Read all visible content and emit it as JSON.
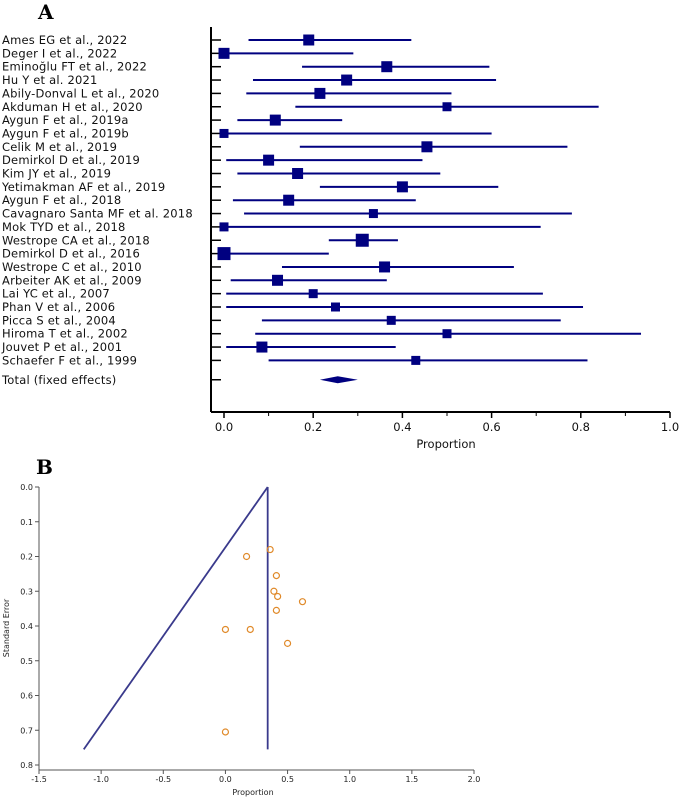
{
  "chart_data": [
    {
      "panel": "A",
      "type": "forest",
      "xlabel": "Proportion",
      "xlim": [
        0,
        1
      ],
      "xticks": [
        "0.0",
        "0.2",
        "0.4",
        "0.6",
        "0.8",
        "1.0"
      ],
      "xtick_values": [
        0,
        0.2,
        0.4,
        0.6,
        0.8,
        1.0
      ],
      "color": "#000080",
      "studies": [
        {
          "label": "Ames EG et al., 2022",
          "est": 0.19,
          "lo": 0.055,
          "hi": 0.42,
          "w": 3
        },
        {
          "label": "Deger I et al., 2022",
          "est": 0.0,
          "lo": 0.0,
          "hi": 0.29,
          "w": 3
        },
        {
          "label": "Eminoğlu FT et al., 2022",
          "est": 0.365,
          "lo": 0.175,
          "hi": 0.595,
          "w": 3
        },
        {
          "label": "Hu Y et al. 2021",
          "est": 0.275,
          "lo": 0.065,
          "hi": 0.61,
          "w": 3
        },
        {
          "label": "Abily-Donval L et al., 2020",
          "est": 0.215,
          "lo": 0.05,
          "hi": 0.51,
          "w": 3
        },
        {
          "label": "Akduman H et al., 2020",
          "est": 0.5,
          "lo": 0.16,
          "hi": 0.84,
          "w": 2
        },
        {
          "label": "Aygun F et al., 2019a",
          "est": 0.115,
          "lo": 0.03,
          "hi": 0.265,
          "w": 3
        },
        {
          "label": "Aygun F et al., 2019b",
          "est": 0.0,
          "lo": 0.0,
          "hi": 0.6,
          "w": 2
        },
        {
          "label": "Celik M et al., 2019",
          "est": 0.455,
          "lo": 0.17,
          "hi": 0.77,
          "w": 3
        },
        {
          "label": "Demirkol D et al., 2019",
          "est": 0.1,
          "lo": 0.005,
          "hi": 0.445,
          "w": 3
        },
        {
          "label": "Kim JY et al., 2019",
          "est": 0.165,
          "lo": 0.03,
          "hi": 0.485,
          "w": 3
        },
        {
          "label": "Yetimakman AF et al., 2019",
          "est": 0.4,
          "lo": 0.215,
          "hi": 0.615,
          "w": 3
        },
        {
          "label": "Aygun F et al., 2018",
          "est": 0.145,
          "lo": 0.02,
          "hi": 0.43,
          "w": 3
        },
        {
          "label": "Cavagnaro Santa MF et al. 2018",
          "est": 0.335,
          "lo": 0.045,
          "hi": 0.78,
          "w": 2
        },
        {
          "label": "Mok TYD et al., 2018",
          "est": 0.0,
          "lo": 0.0,
          "hi": 0.71,
          "w": 2
        },
        {
          "label": "Westrope CA et al., 2018",
          "est": 0.31,
          "lo": 0.235,
          "hi": 0.39,
          "w": 4
        },
        {
          "label": "Demirkol D et al., 2016",
          "est": 0.0,
          "lo": 0.0,
          "hi": 0.235,
          "w": 4
        },
        {
          "label": "Westrope C et al., 2010",
          "est": 0.36,
          "lo": 0.13,
          "hi": 0.65,
          "w": 3
        },
        {
          "label": "Arbeiter AK et al., 2009",
          "est": 0.12,
          "lo": 0.015,
          "hi": 0.365,
          "w": 3
        },
        {
          "label": "Lai YC et al., 2007",
          "est": 0.2,
          "lo": 0.005,
          "hi": 0.715,
          "w": 2
        },
        {
          "label": "Phan V et al., 2006",
          "est": 0.25,
          "lo": 0.005,
          "hi": 0.805,
          "w": 2
        },
        {
          "label": "Picca S et al., 2004",
          "est": 0.375,
          "lo": 0.085,
          "hi": 0.755,
          "w": 2
        },
        {
          "label": "Hiroma T et al., 2002",
          "est": 0.5,
          "lo": 0.07,
          "hi": 0.935,
          "w": 2
        },
        {
          "label": "Jouvet P et al., 2001",
          "est": 0.085,
          "lo": 0.005,
          "hi": 0.385,
          "w": 3
        },
        {
          "label": "Schaefer F et al., 1999",
          "est": 0.43,
          "lo": 0.1,
          "hi": 0.815,
          "w": 2
        }
      ],
      "total": {
        "label": "Total (fixed effects)",
        "est": 0.255,
        "lo": 0.215,
        "hi": 0.3
      }
    },
    {
      "panel": "B",
      "type": "scatter",
      "subtype": "funnel",
      "xlabel": "Proportion",
      "ylabel": "Standard Error",
      "xlim": [
        -1.5,
        2.0
      ],
      "ylim": [
        0.0,
        0.8
      ],
      "y_inverted": true,
      "xticks": [
        "-1.5",
        "-1.0",
        "-0.5",
        "0.0",
        "0.5",
        "1.0",
        "1.5",
        "2.0"
      ],
      "xtick_values": [
        -1.5,
        -1.0,
        -0.5,
        0.0,
        0.5,
        1.0,
        1.5,
        2.0
      ],
      "yticks": [
        "0.0",
        "0.1",
        "0.2",
        "0.3",
        "0.4",
        "0.5",
        "0.6",
        "0.7",
        "0.8"
      ],
      "ytick_values": [
        0.0,
        0.1,
        0.2,
        0.3,
        0.4,
        0.5,
        0.6,
        0.7,
        0.8
      ],
      "line_color": "#3a3a8c",
      "point_color": "#e08a2a",
      "pooled_estimate": 0.34,
      "funnel_apex_se": 0.0,
      "funnel_base_se": 0.755,
      "funnel_base_left_x": -1.14,
      "points": [
        {
          "x": 0.36,
          "se": 0.18
        },
        {
          "x": 0.17,
          "se": 0.2
        },
        {
          "x": 0.41,
          "se": 0.255
        },
        {
          "x": 0.39,
          "se": 0.3
        },
        {
          "x": 0.42,
          "se": 0.315
        },
        {
          "x": 0.62,
          "se": 0.33
        },
        {
          "x": 0.41,
          "se": 0.355
        },
        {
          "x": 0.0,
          "se": 0.41
        },
        {
          "x": 0.2,
          "se": 0.41
        },
        {
          "x": 0.5,
          "se": 0.45
        },
        {
          "x": 0.0,
          "se": 0.705
        }
      ]
    }
  ]
}
